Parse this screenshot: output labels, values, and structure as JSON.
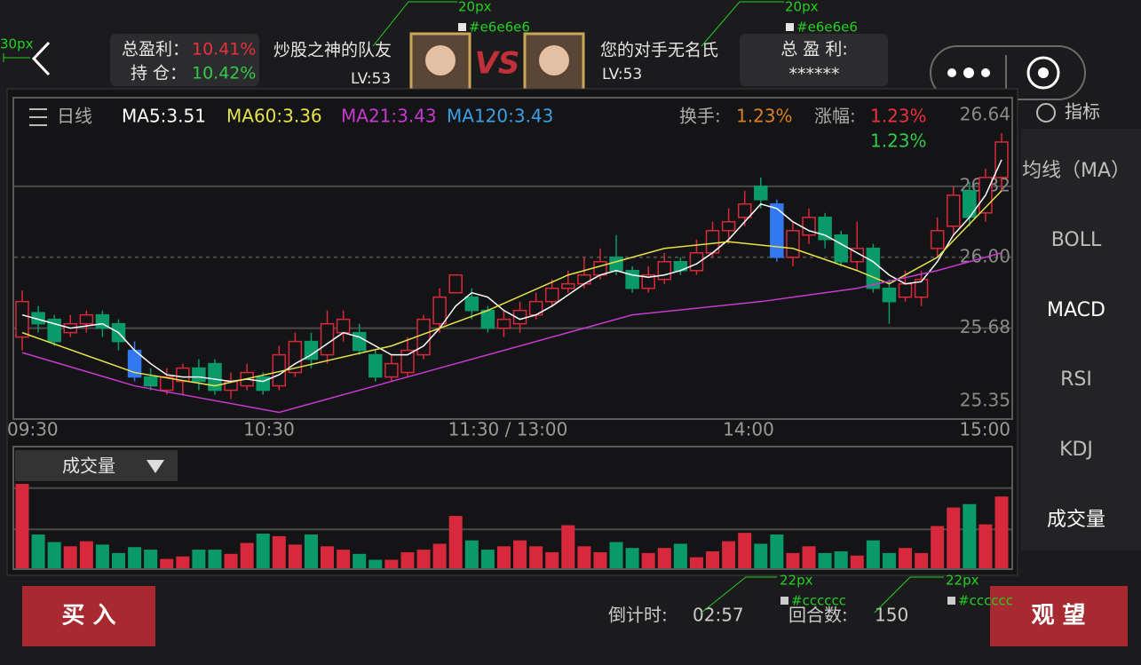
{
  "header": {
    "left_profit_label": "总盈利：",
    "left_profit": "10.41%",
    "left_position_label": "持 仓：",
    "left_position": "10.42%",
    "player_name": "炒股之神的队友",
    "player_level": "LV:53",
    "vs": "VS",
    "opponent_name": "您的对手无名氏",
    "opponent_level": "LV:53",
    "right_profit_label": "总 盈 利:",
    "right_profit": "******"
  },
  "chart_header": {
    "period": "日线",
    "ma5": "MA5:3.51",
    "ma60": "MA60:3.36",
    "ma21": "MA21:3.43",
    "ma120": "MA120:3.43",
    "turnover_label": "换手:",
    "turnover": "1.23%",
    "change_label": "涨幅:",
    "change": "1.23%",
    "change2": "1.23%"
  },
  "chart_data": {
    "type": "candlestick",
    "ylim": [
      25.27,
      26.72
    ],
    "yticks": [
      26.64,
      26.32,
      {
        "value": 26,
        "label": "26.00"
      },
      25.68,
      25.35
    ],
    "grid": [
      26.32,
      26,
      25.68
    ],
    "dashed_grid": 26,
    "xlabels": [
      "09:30",
      "10:30",
      "11:30 / 13:00",
      "14:00",
      "15:00"
    ],
    "up_color": "#d7293b",
    "down_color": "#0a9a6a",
    "highlight_color": "#3278f0",
    "highlight": [
      7,
      47
    ],
    "candles": [
      [
        25.64,
        25.8,
        25.85,
        25.58
      ],
      [
        25.75,
        25.7,
        25.78,
        25.66
      ],
      [
        25.72,
        25.62,
        25.74,
        25.6
      ],
      [
        25.66,
        25.7,
        25.74,
        25.64
      ],
      [
        25.7,
        25.74,
        25.76,
        25.66
      ],
      [
        25.74,
        25.68,
        25.76,
        25.64
      ],
      [
        25.7,
        25.62,
        25.72,
        25.58
      ],
      [
        25.58,
        25.46,
        25.62,
        25.44
      ],
      [
        25.46,
        25.42,
        25.5,
        25.4
      ],
      [
        25.4,
        25.46,
        25.5,
        25.38
      ],
      [
        25.44,
        25.5,
        25.52,
        25.38
      ],
      [
        25.5,
        25.44,
        25.54,
        25.4
      ],
      [
        25.52,
        25.4,
        25.54,
        25.38
      ],
      [
        25.4,
        25.44,
        25.48,
        25.36
      ],
      [
        25.42,
        25.48,
        25.52,
        25.4
      ],
      [
        25.46,
        25.4,
        25.48,
        25.38
      ],
      [
        25.42,
        25.56,
        25.6,
        25.4
      ],
      [
        25.48,
        25.62,
        25.66,
        25.46
      ],
      [
        25.62,
        25.54,
        25.66,
        25.5
      ],
      [
        25.56,
        25.7,
        25.76,
        25.52
      ],
      [
        25.66,
        25.72,
        25.76,
        25.62
      ],
      [
        25.66,
        25.58,
        25.7,
        25.56
      ],
      [
        25.56,
        25.46,
        25.58,
        25.44
      ],
      [
        25.46,
        25.52,
        25.56,
        25.44
      ],
      [
        25.48,
        25.58,
        25.64,
        25.46
      ],
      [
        25.56,
        25.72,
        25.74,
        25.54
      ],
      [
        25.7,
        25.82,
        25.86,
        25.66
      ],
      [
        25.84,
        25.92,
        25.92,
        25.84
      ],
      [
        25.82,
        25.76,
        25.86,
        25.72
      ],
      [
        25.76,
        25.68,
        25.78,
        25.66
      ],
      [
        25.68,
        25.72,
        25.76,
        25.64
      ],
      [
        25.7,
        25.76,
        25.8,
        25.66
      ],
      [
        25.74,
        25.8,
        25.84,
        25.72
      ],
      [
        25.8,
        25.86,
        25.9,
        25.78
      ],
      [
        25.86,
        25.88,
        25.94,
        25.84
      ],
      [
        25.88,
        25.92,
        26.0,
        25.86
      ],
      [
        25.92,
        25.98,
        26.04,
        25.9
      ],
      [
        26.0,
        25.94,
        26.1,
        25.92
      ],
      [
        25.94,
        25.86,
        25.96,
        25.84
      ],
      [
        25.86,
        25.92,
        25.96,
        25.84
      ],
      [
        25.9,
        25.98,
        26.02,
        25.88
      ],
      [
        25.98,
        25.94,
        26.0,
        25.92
      ],
      [
        25.94,
        26.02,
        26.08,
        25.92
      ],
      [
        26.02,
        26.12,
        26.16,
        26.0
      ],
      [
        26.12,
        26.16,
        26.22,
        26.06
      ],
      [
        26.18,
        26.24,
        26.3,
        26.14
      ],
      [
        26.32,
        26.26,
        26.36,
        26.22
      ],
      [
        26.24,
        26.0,
        26.26,
        25.98
      ],
      [
        26.0,
        26.12,
        26.16,
        25.96
      ],
      [
        26.1,
        26.18,
        26.22,
        26.06
      ],
      [
        26.18,
        26.08,
        26.2,
        26.04
      ],
      [
        26.1,
        25.98,
        26.12,
        25.96
      ],
      [
        25.98,
        26.04,
        26.16,
        25.94
      ],
      [
        26.04,
        25.86,
        26.06,
        25.84
      ],
      [
        25.86,
        25.8,
        25.9,
        25.7
      ],
      [
        25.82,
        25.88,
        25.94,
        25.8
      ],
      [
        25.82,
        25.9,
        25.94,
        25.78
      ],
      [
        26.04,
        26.12,
        26.18,
        26.0
      ],
      [
        26.14,
        26.28,
        26.32,
        26.1
      ],
      [
        26.3,
        26.18,
        26.34,
        26.14
      ],
      [
        26.2,
        26.36,
        26.4,
        26.16
      ],
      [
        26.36,
        26.52,
        26.56,
        26.3
      ]
    ],
    "series": [
      {
        "name": "MA5",
        "color": "#ffffff",
        "values": [
          25.74,
          25.72,
          25.7,
          25.68,
          25.69,
          25.7,
          25.66,
          25.58,
          25.52,
          25.47,
          25.46,
          25.46,
          25.45,
          25.44,
          25.45,
          25.44,
          25.47,
          25.52,
          25.56,
          25.61,
          25.66,
          25.64,
          25.6,
          25.56,
          25.56,
          25.6,
          25.68,
          25.78,
          25.84,
          25.82,
          25.76,
          25.72,
          25.74,
          25.78,
          25.83,
          25.88,
          25.92,
          25.94,
          25.92,
          25.91,
          25.92,
          25.94,
          25.97,
          26.02,
          26.08,
          26.16,
          26.24,
          26.22,
          26.16,
          26.12,
          26.1,
          26.06,
          26.02,
          25.98,
          25.92,
          25.88,
          25.89,
          25.98,
          26.1,
          26.18,
          26.28,
          26.44
        ]
      },
      {
        "name": "MA60",
        "color": "#e6e24a",
        "x": [
          0,
          7,
          12,
          17,
          23,
          29,
          34,
          40,
          44,
          48,
          52,
          54,
          57,
          61
        ],
        "values": [
          25.66,
          25.48,
          25.42,
          25.5,
          25.6,
          25.76,
          25.92,
          26.04,
          26.07,
          26.04,
          25.94,
          25.88,
          26.0,
          26.3
        ]
      },
      {
        "name": "MA21",
        "color": "#c63ad0",
        "x": [
          0,
          7,
          16,
          21,
          29,
          38,
          46,
          52,
          57,
          61
        ],
        "values": [
          25.57,
          25.42,
          25.3,
          25.4,
          25.56,
          25.74,
          25.8,
          25.86,
          25.94,
          26.02
        ]
      }
    ]
  },
  "volume": {
    "title": "成交量",
    "ylim": [
      0,
      100
    ],
    "grid": [
      95,
      46
    ],
    "values": [
      100,
      40,
      31,
      26,
      32,
      28,
      18,
      25,
      22,
      11,
      14,
      22,
      22,
      17,
      30,
      41,
      38,
      28,
      40,
      26,
      22,
      17,
      10,
      10,
      19,
      22,
      29,
      62,
      33,
      22,
      26,
      33,
      26,
      19,
      51,
      26,
      19,
      31,
      24,
      18,
      24,
      29,
      13,
      20,
      32,
      42,
      29,
      40,
      18,
      26,
      18,
      20,
      15,
      33,
      18,
      24,
      18,
      50,
      72,
      76,
      52,
      85
    ]
  },
  "sidebar": {
    "title": "指标",
    "items": [
      "均线（MA）",
      "BOLL",
      "MACD",
      "RSI",
      "KDJ",
      "成交量"
    ]
  },
  "footer": {
    "buy": "买 入",
    "countdown_label": "倒计时:",
    "countdown": "02:57",
    "rounds_label": "回合数:",
    "rounds": "150",
    "watch": "观 望"
  },
  "annotations": [
    "30px",
    "20px",
    "#e6e6e6",
    "20px",
    "#e6e6e6",
    "22px",
    "#cccccc",
    "22px",
    "#cccccc"
  ]
}
